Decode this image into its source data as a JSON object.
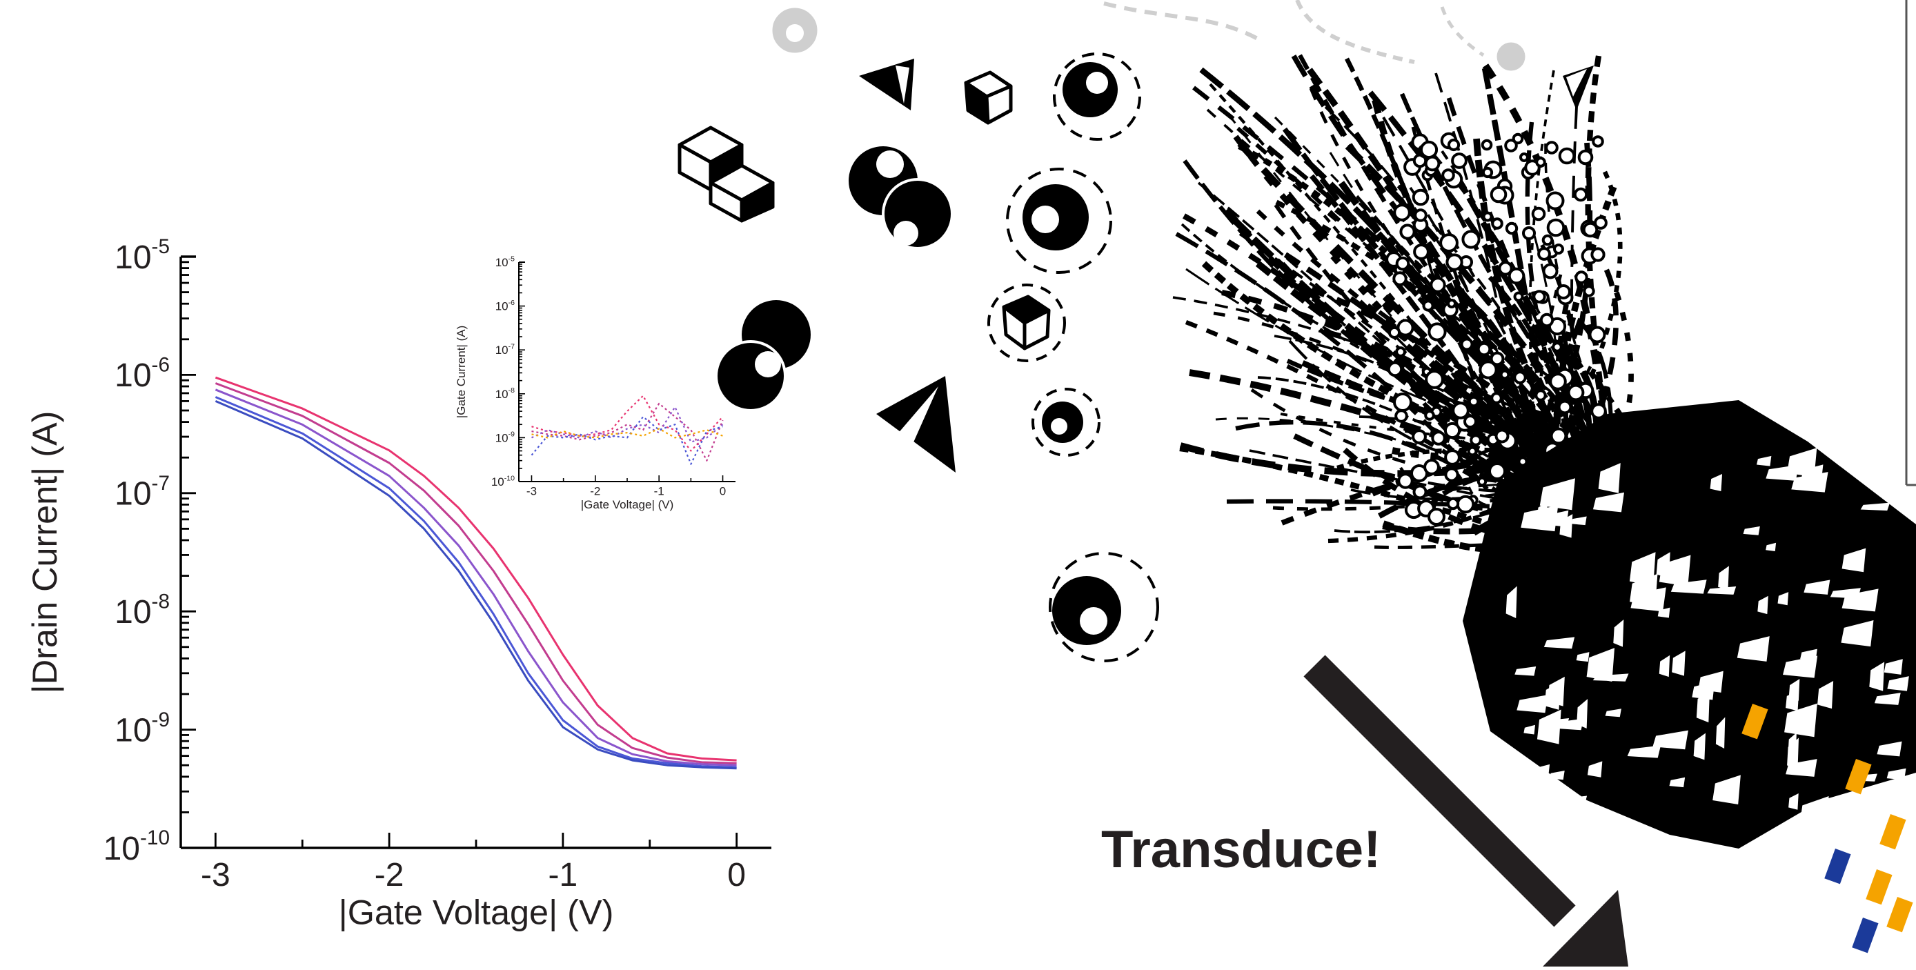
{
  "chart_data": [
    {
      "type": "line",
      "xlabel": "|Gate Voltage| (V)",
      "ylabel": "|Drain Current| (A)",
      "xlim": [
        -3.2,
        0.2
      ],
      "ylim_exponents": [
        -10,
        -5
      ],
      "yscale": "log",
      "x_ticks": [
        "-3",
        "-2",
        "-1",
        "0"
      ],
      "y_ticks": [
        {
          "base": "10",
          "exp": "-5"
        },
        {
          "base": "10",
          "exp": "-6"
        },
        {
          "base": "10",
          "exp": "-7"
        },
        {
          "base": "10",
          "exp": "-8"
        },
        {
          "base": "10",
          "exp": "-9"
        },
        {
          "base": "10",
          "exp": "-10"
        }
      ],
      "x": [
        -3.0,
        -2.5,
        -2.0,
        -1.8,
        -1.6,
        -1.4,
        -1.2,
        -1.0,
        -0.8,
        -0.6,
        -0.4,
        -0.2,
        0.0
      ],
      "series": [
        {
          "color": "#e8336f",
          "values": [
            9.5e-07,
            5.2e-07,
            2.3e-07,
            1.4e-07,
            7.5e-08,
            3.4e-08,
            1.3e-08,
            4.3e-09,
            1.6e-09,
            8.5e-10,
            6.3e-10,
            5.7e-10,
            5.5e-10
          ]
        },
        {
          "color": "#c23c8f",
          "values": [
            8.5e-07,
            4.5e-07,
            1.8e-07,
            1.05e-07,
            5.3e-08,
            2.2e-08,
            7.8e-09,
            2.6e-09,
            1.1e-09,
            7e-10,
            5.8e-10,
            5.3e-10,
            5.2e-10
          ]
        },
        {
          "color": "#8a55cc",
          "values": [
            7.5e-07,
            3.8e-07,
            1.4e-07,
            7.5e-08,
            3.6e-08,
            1.4e-08,
            4.6e-09,
            1.7e-09,
            8.5e-10,
            6.2e-10,
            5.4e-10,
            5.1e-10,
            5e-10
          ]
        },
        {
          "color": "#4b57d6",
          "values": [
            6.5e-07,
            3.2e-07,
            1.1e-07,
            5.8e-08,
            2.6e-08,
            9.5e-09,
            3e-09,
            1.2e-09,
            7.2e-10,
            5.7e-10,
            5.2e-10,
            4.9e-10,
            4.8e-10
          ]
        },
        {
          "color": "#3a4cc0",
          "values": [
            6e-07,
            2.9e-07,
            9.5e-08,
            5e-08,
            2.2e-08,
            8e-09,
            2.6e-09,
            1.05e-09,
            6.8e-10,
            5.5e-10,
            5e-10,
            4.8e-10,
            4.7e-10
          ]
        }
      ]
    },
    {
      "type": "scatter",
      "xlabel": "|Gate Voltage| (V)",
      "ylabel": "|Gate Current| (A)",
      "xlim": [
        -3.2,
        0.2
      ],
      "ylim_exponents": [
        -10,
        -5
      ],
      "yscale": "log",
      "x_ticks": [
        "-3",
        "-2",
        "-1",
        "0"
      ],
      "y_ticks": [
        {
          "base": "10",
          "exp": "-5"
        },
        {
          "base": "10",
          "exp": "-6"
        },
        {
          "base": "10",
          "exp": "-7"
        },
        {
          "base": "10",
          "exp": "-8"
        },
        {
          "base": "10",
          "exp": "-9"
        },
        {
          "base": "10",
          "exp": "-10"
        }
      ],
      "x": [
        -3.0,
        -2.75,
        -2.5,
        -2.25,
        -2.0,
        -1.75,
        -1.5,
        -1.25,
        -1.0,
        -0.75,
        -0.5,
        -0.25,
        0.0
      ],
      "series": [
        {
          "color": "#e8336f",
          "values": [
            1.8e-09,
            1.4e-09,
            1.3e-09,
            1.1e-09,
            1.2e-09,
            1.5e-09,
            4e-09,
            9e-09,
            2e-09,
            1.5e-09,
            5e-10,
            1.2e-09,
            3e-09
          ]
        },
        {
          "color": "#c23c8f",
          "values": [
            1.4e-09,
            1.2e-09,
            1.1e-09,
            9e-10,
            1.1e-09,
            1.3e-09,
            2e-09,
            1.5e-09,
            6e-09,
            3e-09,
            1.5e-09,
            3e-10,
            2.5e-09
          ]
        },
        {
          "color": "#8a55cc",
          "values": [
            1e-09,
            1.5e-09,
            1.2e-09,
            1e-09,
            1.4e-09,
            1e-09,
            1.6e-09,
            2e-09,
            1.3e-09,
            5e-09,
            8e-10,
            1e-09,
            2e-09
          ]
        },
        {
          "color": "#4b57d6",
          "values": [
            4e-10,
            1.1e-09,
            1e-09,
            1.2e-09,
            9e-10,
            1.1e-09,
            1e-09,
            3e-09,
            1.5e-09,
            2e-09,
            2.5e-10,
            1.4e-09,
            1.8e-09
          ]
        },
        {
          "color": "#f5a300",
          "values": [
            1.2e-09,
            1e-09,
            1.4e-09,
            1.1e-09,
            1e-09,
            1.2e-09,
            1.3e-09,
            1.1e-09,
            1.6e-09,
            1e-09,
            1.2e-09,
            1.5e-09,
            1.1e-09
          ]
        }
      ]
    }
  ],
  "annotation": {
    "text": "Transduce!"
  },
  "illustration": {
    "icons": [
      "cube-icon",
      "tetrahedron-icon",
      "sphere-icon",
      "particle-swarm-illustration",
      "device-illustration",
      "arrow-icon"
    ],
    "accent_colors": [
      "#000000",
      "#f5a300",
      "#1b3a9a",
      "#231f20"
    ]
  }
}
